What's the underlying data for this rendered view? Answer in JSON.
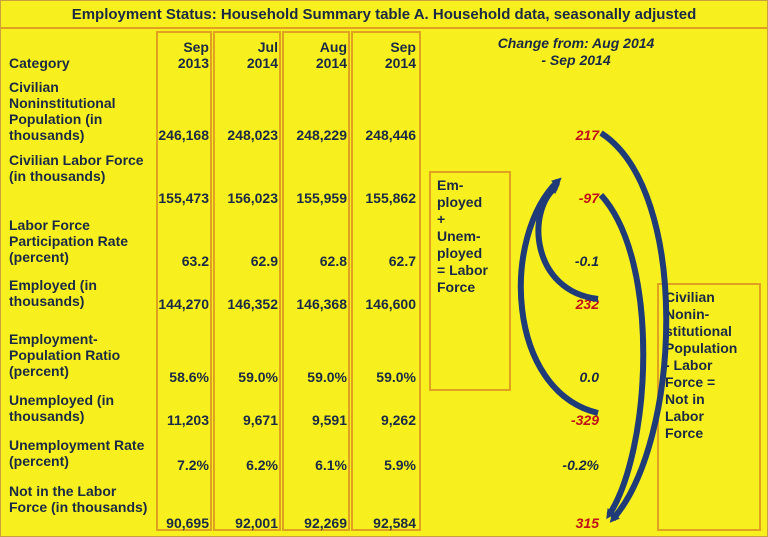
{
  "title": "Employment Status: Household Summary table A. Household data, seasonally adjusted",
  "header": {
    "category": "Category",
    "columns": [
      "Sep\n2013",
      "Jul\n2014",
      "Aug\n2014",
      "Sep\n2014"
    ],
    "change_line1": "Change from: Aug 2014",
    "change_line2": "- Sep 2014"
  },
  "rows": [
    {
      "category": "Civilian Noninstitutional Population (in thousands)",
      "values": [
        "246,168",
        "248,023",
        "248,229",
        "248,446"
      ],
      "change": "217",
      "change_color": "#c0101a"
    },
    {
      "category": "Civilian Labor Force (in thousands)",
      "values": [
        "155,473",
        "156,023",
        "155,959",
        "155,862"
      ],
      "change": "-97",
      "change_color": "#c0101a"
    },
    {
      "category": "Labor Force Participation Rate (percent)",
      "values": [
        "63.2",
        "62.9",
        "62.8",
        "62.7"
      ],
      "change": "-0.1",
      "change_color": "#1b2a44"
    },
    {
      "category": "Employed (in thousands)",
      "values": [
        "144,270",
        "146,352",
        "146,368",
        "146,600"
      ],
      "change": "232",
      "change_color": "#c0101a"
    },
    {
      "category": "Employment-Population Ratio (percent)",
      "values": [
        "58.6%",
        "59.0%",
        "59.0%",
        "59.0%"
      ],
      "change": "0.0",
      "change_color": "#1b2a44"
    },
    {
      "category": "Unemployed (in thousands)",
      "values": [
        "11,203",
        "9,671",
        "9,591",
        "9,262"
      ],
      "change": "-329",
      "change_color": "#c0101a"
    },
    {
      "category": "Unemployment Rate (percent)",
      "values": [
        "7.2%",
        "6.2%",
        "6.1%",
        "5.9%"
      ],
      "change": "-0.2%",
      "change_color": "#1b2a44"
    },
    {
      "category": "Not in the Labor Force (in thousands)",
      "values": [
        "90,695",
        "92,001",
        "92,269",
        "92,584"
      ],
      "change": "315",
      "change_color": "#c0101a"
    }
  ],
  "notes": {
    "labor_force": "Em-\nployed\n+\nUnem-\nployed\n= Labor\nForce",
    "not_in_labor_force": "Civilian\nNonin-\nstitutional\nPopulation\n- Labor\nForce =\nNot in\nLabor\nForce"
  },
  "colors": {
    "background": "#f7f01e",
    "border": "#e0a020",
    "text": "#1b2a44",
    "red": "#c0101a",
    "arrow": "#1f3b78"
  }
}
